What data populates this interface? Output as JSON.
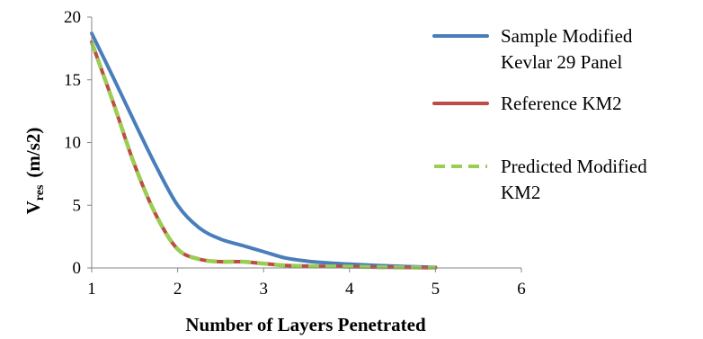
{
  "chart_data": {
    "type": "line",
    "title": "",
    "xlabel": "Number  of Layers Penetrated",
    "ylabel_main": "V",
    "ylabel_sub": "res",
    "ylabel_unit": "(m/s2)",
    "xlim": [
      1,
      6
    ],
    "ylim": [
      0,
      20
    ],
    "xticks": [
      "1",
      "2",
      "3",
      "4",
      "5",
      "6"
    ],
    "yticks": [
      "0",
      "5",
      "10",
      "15",
      "20"
    ],
    "grid": false,
    "legend_position": "right",
    "series": [
      {
        "name_lines": [
          "Sample Modified",
          "Kevlar 29 Panel"
        ],
        "color": "#4a7ebb",
        "style": "solid",
        "x": [
          1,
          1.25,
          1.5,
          1.75,
          2,
          2.25,
          2.5,
          2.75,
          3,
          3.25,
          3.5,
          3.75,
          4,
          4.5,
          5
        ],
        "y": [
          18.7,
          15.2,
          11.6,
          8.1,
          5.0,
          3.2,
          2.3,
          1.8,
          1.3,
          0.8,
          0.55,
          0.4,
          0.3,
          0.15,
          0.05
        ]
      },
      {
        "name_lines": [
          "Reference KM2"
        ],
        "color": "#be4b48",
        "style": "solid",
        "x": [
          1,
          1.25,
          1.5,
          1.75,
          2,
          2.25,
          2.5,
          2.75,
          3,
          3.25,
          3.5,
          4,
          4.5,
          5
        ],
        "y": [
          18.0,
          13.2,
          8.2,
          4.2,
          1.5,
          0.7,
          0.5,
          0.5,
          0.35,
          0.2,
          0.15,
          0.1,
          0.05,
          0.02
        ]
      },
      {
        "name_lines": [
          "Predicted Modified",
          "KM2"
        ],
        "color": "#9bcd53",
        "style": "dashed",
        "x": [
          1,
          1.25,
          1.5,
          1.75,
          2,
          2.25,
          2.5,
          2.75,
          3,
          3.25,
          3.5,
          4,
          4.5,
          5
        ],
        "y": [
          18.0,
          13.2,
          8.2,
          4.2,
          1.5,
          0.7,
          0.5,
          0.5,
          0.35,
          0.2,
          0.15,
          0.1,
          0.05,
          0.02
        ]
      }
    ]
  }
}
